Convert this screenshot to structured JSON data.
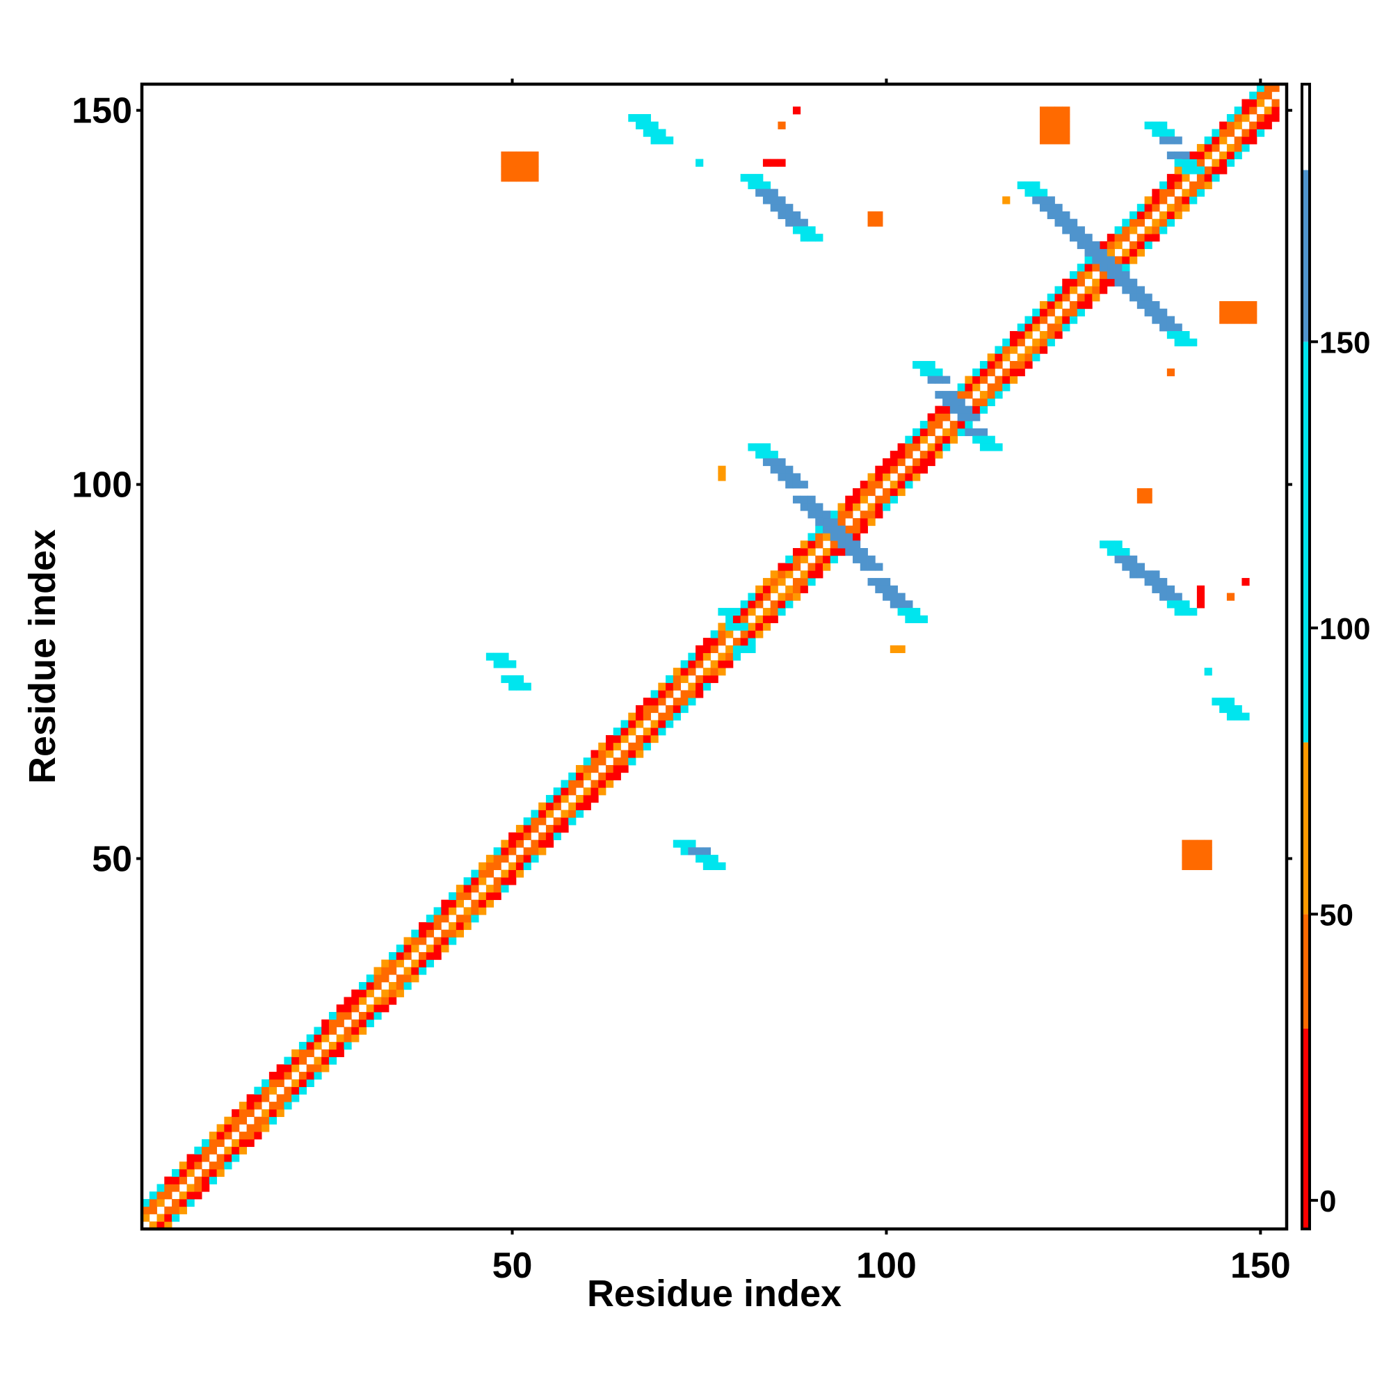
{
  "chart_data": {
    "type": "heatmap",
    "title": "",
    "xlabel": "Residue index",
    "ylabel": "Residue index",
    "xlim": [
      1,
      153
    ],
    "ylim": [
      1,
      153
    ],
    "x_ticks": [
      50,
      100,
      150
    ],
    "y_ticks": [
      50,
      100,
      150
    ],
    "colorbar": {
      "ticks": [
        0,
        50,
        100,
        150
      ],
      "range": [
        -5,
        195
      ],
      "segments": [
        {
          "from": -5,
          "to": 30,
          "color": "#ff0000"
        },
        {
          "from": 30,
          "to": 50,
          "color": "#ff6a00"
        },
        {
          "from": 50,
          "to": 80,
          "color": "#ff9900"
        },
        {
          "from": 80,
          "to": 150,
          "color": "#00e5ee"
        },
        {
          "from": 150,
          "to": 180,
          "color": "#4f94cd"
        },
        {
          "from": 180,
          "to": 195,
          "color": "#ffffff"
        }
      ]
    },
    "palette": {
      "red": "#ff0000",
      "darkorange": "#ff6a00",
      "orange": "#ff9900",
      "cyan": "#00e5ee",
      "steelblue": "#4f94cd"
    },
    "grid": false,
    "legend": "colorbar-right",
    "features": [
      {
        "kind": "band",
        "from": [
          1,
          1
        ],
        "to": [
          152,
          152
        ],
        "half_width": 3
      },
      {
        "kind": "diag",
        "from": [
          83,
          105
        ],
        "to": [
          104,
          82
        ],
        "color": "steelblue"
      },
      {
        "kind": "diag",
        "from": [
          105,
          116
        ],
        "to": [
          114,
          105
        ],
        "color": "steelblue"
      },
      {
        "kind": "diag",
        "from": [
          119,
          140
        ],
        "to": [
          140,
          119
        ],
        "color": "steelblue"
      },
      {
        "kind": "diag",
        "from": [
          82,
          141
        ],
        "to": [
          90,
          133
        ],
        "color": "steelblue"
      },
      {
        "kind": "diag",
        "from": [
          130,
          92
        ],
        "to": [
          140,
          83
        ],
        "color": "steelblue"
      },
      {
        "kind": "diag",
        "from": [
          67,
          149
        ],
        "to": [
          70,
          146
        ],
        "color": "steelblue"
      },
      {
        "kind": "diag",
        "from": [
          136,
          148
        ],
        "to": [
          141,
          142
        ],
        "color": "steelblue"
      },
      {
        "kind": "diag",
        "from": [
          73,
          52
        ],
        "to": [
          77,
          49
        ],
        "color": "steelblue"
      },
      {
        "kind": "diag",
        "from": [
          48,
          77
        ],
        "to": [
          51,
          73
        ],
        "color": "steelblue"
      },
      {
        "kind": "diag",
        "from": [
          145,
          71
        ],
        "to": [
          147,
          69
        ],
        "color": "steelblue"
      },
      {
        "kind": "diag",
        "from": [
          79,
          83
        ],
        "to": [
          81,
          78
        ],
        "color": "steelblue"
      },
      {
        "kind": "patch",
        "x": [
          49,
          53
        ],
        "y": [
          141,
          144
        ],
        "color": "darkorange"
      },
      {
        "kind": "patch",
        "x": [
          121,
          124
        ],
        "y": [
          146,
          150
        ],
        "color": "darkorange"
      },
      {
        "kind": "patch",
        "x": [
          145,
          149
        ],
        "y": [
          122,
          124
        ],
        "color": "darkorange"
      },
      {
        "kind": "patch",
        "x": [
          140,
          143
        ],
        "y": [
          49,
          52
        ],
        "color": "darkorange"
      },
      {
        "kind": "patch",
        "x": [
          84,
          86
        ],
        "y": [
          143,
          143
        ],
        "color": "red"
      },
      {
        "kind": "patch",
        "x": [
          98,
          99
        ],
        "y": [
          135,
          136
        ],
        "color": "darkorange"
      },
      {
        "kind": "patch",
        "x": [
          134,
          135
        ],
        "y": [
          98,
          99
        ],
        "color": "darkorange"
      },
      {
        "kind": "patch",
        "x": [
          142,
          142
        ],
        "y": [
          84,
          86
        ],
        "color": "red"
      },
      {
        "kind": "patch",
        "x": [
          88,
          88
        ],
        "y": [
          150,
          150
        ],
        "color": "red"
      },
      {
        "kind": "patch",
        "x": [
          86,
          86
        ],
        "y": [
          148,
          148
        ],
        "color": "darkorange"
      },
      {
        "kind": "patch",
        "x": [
          148,
          148
        ],
        "y": [
          87,
          87
        ],
        "color": "red"
      },
      {
        "kind": "patch",
        "x": [
          146,
          146
        ],
        "y": [
          85,
          85
        ],
        "color": "darkorange"
      },
      {
        "kind": "patch",
        "x": [
          75,
          75
        ],
        "y": [
          143,
          143
        ],
        "color": "cyan"
      },
      {
        "kind": "patch",
        "x": [
          143,
          143
        ],
        "y": [
          75,
          75
        ],
        "color": "cyan"
      },
      {
        "kind": "patch",
        "x": [
          116,
          116
        ],
        "y": [
          138,
          138
        ],
        "color": "orange"
      },
      {
        "kind": "patch",
        "x": [
          138,
          138
        ],
        "y": [
          115,
          115
        ],
        "color": "darkorange"
      },
      {
        "kind": "patch",
        "x": [
          78,
          78
        ],
        "y": [
          101,
          102
        ],
        "color": "orange"
      },
      {
        "kind": "patch",
        "x": [
          101,
          102
        ],
        "y": [
          78,
          78
        ],
        "color": "orange"
      }
    ]
  }
}
